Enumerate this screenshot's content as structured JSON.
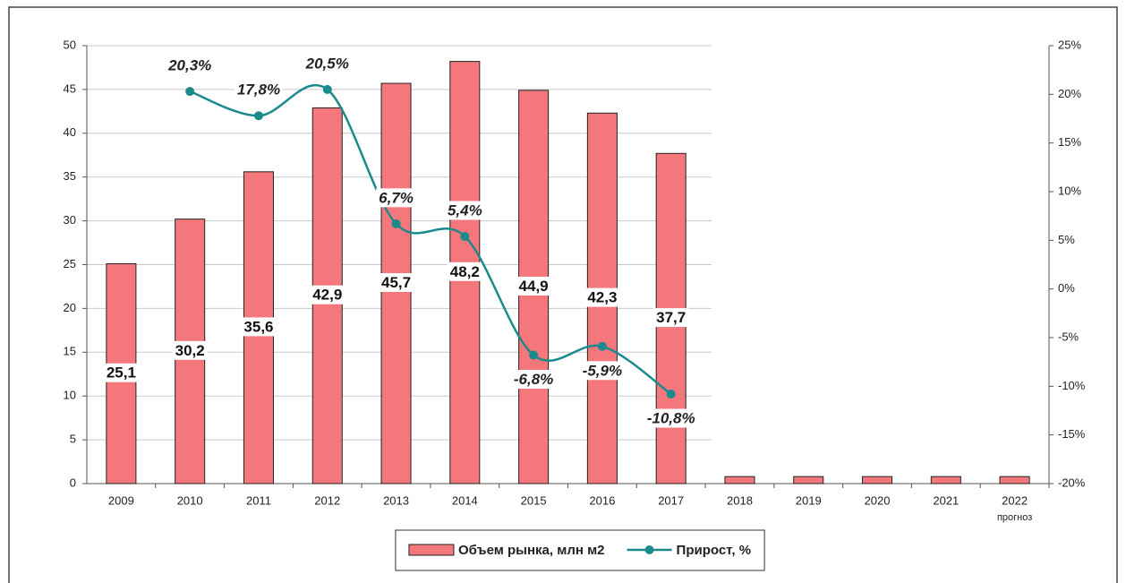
{
  "chart_data": {
    "type": "bar",
    "categories": [
      "2009",
      "2010",
      "2011",
      "2012",
      "2013",
      "2014",
      "2015",
      "2016",
      "2017",
      "2018",
      "2019",
      "2020",
      "2021",
      "2022"
    ],
    "annotations": [
      "прогноз"
    ],
    "series": [
      {
        "name": "Объем рынка, млн м2",
        "type": "bar",
        "color": "#f4777b",
        "values": [
          25.1,
          30.2,
          35.6,
          42.9,
          45.7,
          48.2,
          44.9,
          42.3,
          37.7,
          0.8,
          0.8,
          0.8,
          0.8,
          0.8
        ],
        "value_labels": [
          "25,1",
          "30,2",
          "35,6",
          "42,9",
          "45,7",
          "48,2",
          "44,9",
          "42,3",
          "37,7",
          null,
          null,
          null,
          null,
          null
        ]
      },
      {
        "name": "Прирост, %",
        "type": "line",
        "axis": "y2",
        "color": "#1a8a8c",
        "values": [
          null,
          20.3,
          17.8,
          20.5,
          6.7,
          5.4,
          -6.8,
          -5.9,
          -10.8,
          null,
          null,
          null,
          null,
          null
        ],
        "value_labels": [
          null,
          "20,3%",
          "17,8%",
          "20,5%",
          "6,7%",
          "5,4%",
          "-6,8%",
          "-5,9%",
          "-10,8%",
          null,
          null,
          null,
          null,
          null
        ]
      }
    ],
    "ylim": [
      0,
      50
    ],
    "yticks": [
      0,
      5,
      10,
      15,
      20,
      25,
      30,
      35,
      40,
      45,
      50
    ],
    "y2lim": [
      -20,
      25
    ],
    "y2ticks": [
      {
        "value": -20,
        "label": "-20%"
      },
      {
        "value": -15,
        "label": "-15%"
      },
      {
        "value": -10,
        "label": "-10%"
      },
      {
        "value": -5,
        "label": "-5%"
      },
      {
        "value": 0,
        "label": "0%"
      },
      {
        "value": 5,
        "label": "5%"
      },
      {
        "value": 10,
        "label": "10%"
      },
      {
        "value": 15,
        "label": "15%"
      },
      {
        "value": 20,
        "label": "20%"
      },
      {
        "value": 25,
        "label": "25%"
      }
    ],
    "grid": true,
    "legend": "bottom"
  }
}
